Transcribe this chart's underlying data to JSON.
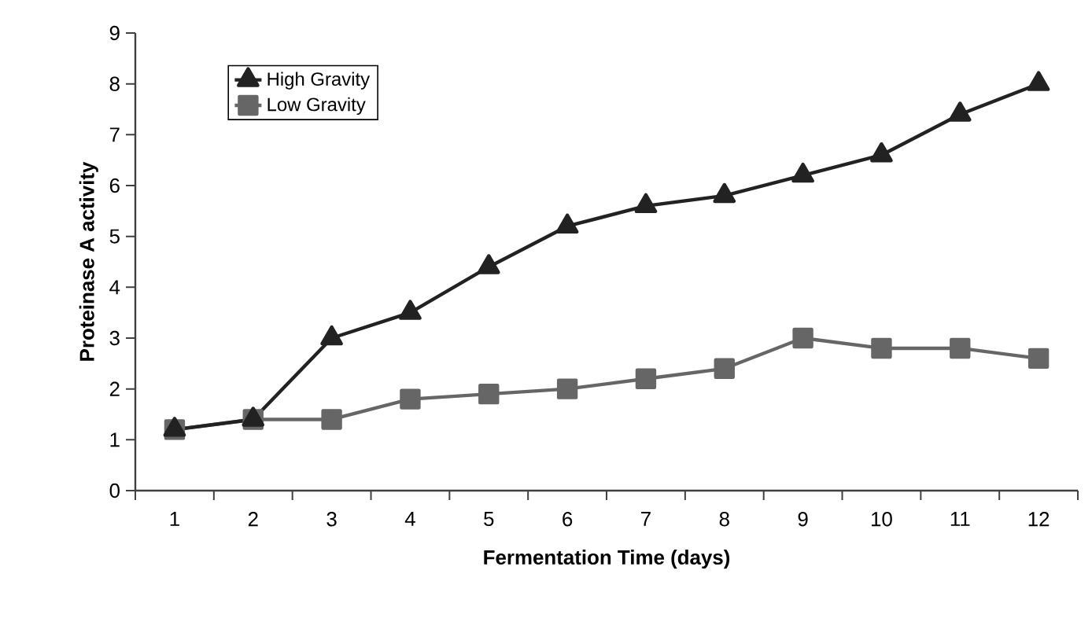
{
  "chart_data": {
    "type": "line",
    "xlabel": "Fermentation Time (days)",
    "ylabel": "Proteinase A activity",
    "categories": [
      "1",
      "2",
      "3",
      "4",
      "5",
      "6",
      "7",
      "8",
      "9",
      "10",
      "11",
      "12"
    ],
    "series": [
      {
        "name": "High Gravity",
        "color": "#222222",
        "marker": "triangle",
        "values": [
          1.2,
          1.4,
          3.0,
          3.5,
          4.4,
          5.2,
          5.6,
          5.8,
          6.2,
          6.6,
          7.4,
          8.0
        ]
      },
      {
        "name": "Low Gravity",
        "color": "#666666",
        "marker": "square",
        "values": [
          1.2,
          1.4,
          1.4,
          1.8,
          1.9,
          2.0,
          2.2,
          2.4,
          3.0,
          2.8,
          2.8,
          2.6
        ]
      }
    ],
    "ylim": [
      0,
      9
    ],
    "yticks": [
      0,
      1,
      2,
      3,
      4,
      5,
      6,
      7,
      8,
      9
    ],
    "grid": false,
    "legend": "top left",
    "line_style": "solid"
  }
}
